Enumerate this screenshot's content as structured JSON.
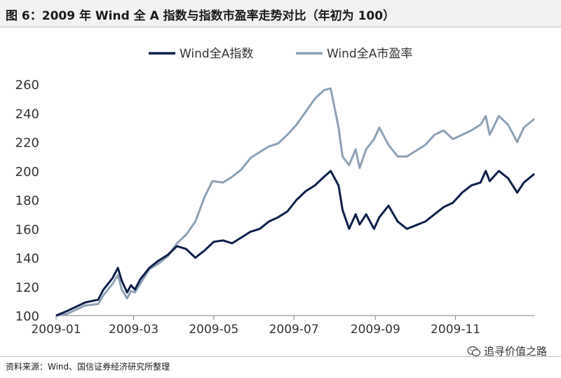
{
  "title": "图 6：2009 年 Wind 全 A 指数与指数市盈率走势对比（年初为 100）",
  "source": "资料来源：Wind、国信证券经济研究所整理",
  "watermark": "追寻价值之路",
  "chart_data": {
    "type": "line",
    "legend_position": "top-center",
    "grid": false,
    "ylim": [
      100,
      260
    ],
    "yticks": [
      100,
      120,
      140,
      160,
      180,
      200,
      220,
      240,
      260
    ],
    "xlim": [
      "2009-01-01",
      "2009-12-31"
    ],
    "xticks": [
      "2009-01",
      "2009-03",
      "2009-05",
      "2009-07",
      "2009-09",
      "2009-11"
    ],
    "series": [
      {
        "name": "Wind全A指数",
        "color": "#0f1f4a",
        "x": [
          "2009-01-01",
          "2009-01-09",
          "2009-01-16",
          "2009-01-23",
          "2009-02-02",
          "2009-02-06",
          "2009-02-13",
          "2009-02-17",
          "2009-02-20",
          "2009-02-24",
          "2009-02-27",
          "2009-03-02",
          "2009-03-06",
          "2009-03-13",
          "2009-03-20",
          "2009-03-27",
          "2009-04-03",
          "2009-04-10",
          "2009-04-17",
          "2009-04-24",
          "2009-05-01",
          "2009-05-08",
          "2009-05-15",
          "2009-05-22",
          "2009-05-29",
          "2009-06-05",
          "2009-06-12",
          "2009-06-19",
          "2009-06-26",
          "2009-07-03",
          "2009-07-10",
          "2009-07-17",
          "2009-07-24",
          "2009-07-29",
          "2009-08-04",
          "2009-08-07",
          "2009-08-12",
          "2009-08-17",
          "2009-08-20",
          "2009-08-25",
          "2009-08-31",
          "2009-09-04",
          "2009-09-11",
          "2009-09-18",
          "2009-09-25",
          "2009-10-09",
          "2009-10-16",
          "2009-10-23",
          "2009-10-30",
          "2009-11-06",
          "2009-11-13",
          "2009-11-20",
          "2009-11-24",
          "2009-11-27",
          "2009-12-04",
          "2009-12-11",
          "2009-12-18",
          "2009-12-23",
          "2009-12-31"
        ],
        "values": [
          100,
          103,
          106,
          109,
          111,
          118,
          126,
          133,
          124,
          116,
          121,
          118,
          125,
          133,
          138,
          142,
          148,
          146,
          140,
          145,
          151,
          152,
          150,
          154,
          158,
          160,
          165,
          168,
          172,
          180,
          186,
          190,
          196,
          200,
          190,
          173,
          160,
          170,
          163,
          170,
          160,
          168,
          176,
          165,
          160,
          165,
          170,
          175,
          178,
          185,
          190,
          192,
          200,
          193,
          200,
          195,
          185,
          192,
          198
        ]
      },
      {
        "name": "Wind全A市盈率",
        "color": "#8ea1b4",
        "x": [
          "2009-01-01",
          "2009-01-09",
          "2009-01-16",
          "2009-01-23",
          "2009-02-02",
          "2009-02-06",
          "2009-02-13",
          "2009-02-17",
          "2009-02-20",
          "2009-02-24",
          "2009-02-27",
          "2009-03-02",
          "2009-03-06",
          "2009-03-13",
          "2009-03-20",
          "2009-03-27",
          "2009-04-03",
          "2009-04-10",
          "2009-04-17",
          "2009-04-24",
          "2009-04-30",
          "2009-05-08",
          "2009-05-15",
          "2009-05-22",
          "2009-05-29",
          "2009-06-05",
          "2009-06-12",
          "2009-06-19",
          "2009-06-26",
          "2009-07-03",
          "2009-07-10",
          "2009-07-17",
          "2009-07-24",
          "2009-07-29",
          "2009-08-04",
          "2009-08-07",
          "2009-08-12",
          "2009-08-17",
          "2009-08-20",
          "2009-08-25",
          "2009-08-31",
          "2009-09-04",
          "2009-09-11",
          "2009-09-18",
          "2009-09-25",
          "2009-10-09",
          "2009-10-16",
          "2009-10-23",
          "2009-10-30",
          "2009-11-06",
          "2009-11-13",
          "2009-11-20",
          "2009-11-24",
          "2009-11-27",
          "2009-12-04",
          "2009-12-11",
          "2009-12-18",
          "2009-12-23",
          "2009-12-31"
        ],
        "values": [
          100,
          101,
          104,
          107,
          108,
          114,
          122,
          128,
          118,
          112,
          117,
          116,
          122,
          132,
          136,
          141,
          150,
          156,
          165,
          182,
          193,
          192,
          196,
          201,
          209,
          213,
          217,
          219,
          225,
          232,
          241,
          250,
          256,
          257,
          230,
          210,
          204,
          215,
          202,
          215,
          222,
          230,
          218,
          210,
          210,
          218,
          225,
          228,
          222,
          225,
          228,
          232,
          238,
          225,
          238,
          232,
          220,
          230,
          236
        ]
      }
    ]
  }
}
